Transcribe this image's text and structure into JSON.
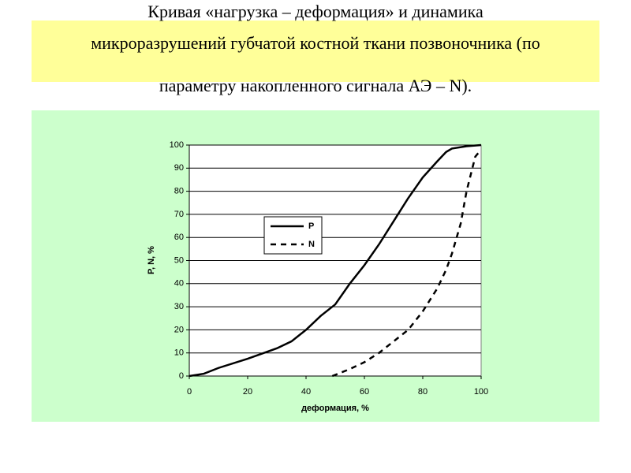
{
  "chart_data": {
    "type": "line",
    "title": [
      "Кривая «нагрузка – деформация» и динамика",
      "микроразрушений губчатой костной ткани позвоночника (по",
      "параметру накопленного сигнала АЭ – N)."
    ],
    "x_label": "деформация, %",
    "y_label": "P, N, %",
    "xlim": [
      0,
      100
    ],
    "ylim": [
      0,
      100
    ],
    "xticks": [
      0,
      20,
      40,
      60,
      80,
      100
    ],
    "yticks": [
      0,
      10,
      20,
      30,
      40,
      50,
      60,
      70,
      80,
      90,
      100
    ],
    "grid": true,
    "legend": "center",
    "series": [
      {
        "name": "P",
        "color": "#000000",
        "line_style": "solid",
        "x": [
          0,
          5,
          10,
          20,
          30,
          35,
          40,
          45,
          50,
          55,
          60,
          65,
          70,
          75,
          80,
          85,
          88,
          90,
          95,
          100
        ],
        "values": [
          0,
          1,
          3.5,
          7.5,
          12,
          15,
          20,
          26,
          31,
          40,
          48,
          57,
          67,
          77,
          86,
          93,
          97,
          98.5,
          99.5,
          100
        ]
      },
      {
        "name": "N",
        "color": "#000000",
        "line_style": "dashed",
        "x": [
          49,
          55,
          60,
          65,
          70,
          75,
          80,
          85,
          88,
          90,
          93,
          95,
          97,
          98,
          100
        ],
        "values": [
          0,
          3,
          6,
          10,
          15,
          20,
          28,
          38,
          46,
          53,
          66,
          80,
          90,
          95,
          98
        ]
      }
    ]
  }
}
